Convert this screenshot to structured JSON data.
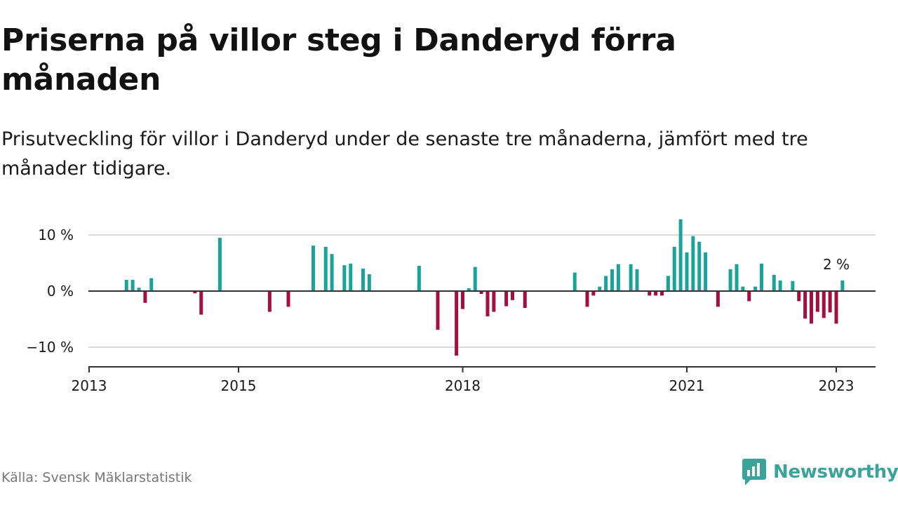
{
  "header": {
    "title": "Priserna på villor steg i Danderyd förra månaden",
    "subtitle": "Prisutveckling för villor i Danderyd under de senaste tre månaderna, jämfört med tre månader tidigare."
  },
  "footer": {
    "source": "Källa: Svensk Mäklarstatistik",
    "brand": "Newsworthy"
  },
  "colors": {
    "positive": "#1aa39a",
    "negative": "#a3103f",
    "grid": "#d9d9d9",
    "zero_line": "#333333",
    "brand": "#3aa39a"
  },
  "chart_data": {
    "type": "bar",
    "title": "Priserna på villor steg i Danderyd förra månaden",
    "subtitle": "Prisutveckling för villor i Danderyd under de senaste tre månaderna, jämfört med tre månader tidigare.",
    "y_ticks": [
      {
        "value": 10,
        "label": "10 %"
      },
      {
        "value": 0,
        "label": "0 %"
      },
      {
        "value": -10,
        "label": "−10 %"
      }
    ],
    "x_ticks": [
      {
        "x": "2013-01",
        "label": "2013"
      },
      {
        "x": "2015-01",
        "label": "2015"
      },
      {
        "x": "2018-01",
        "label": "2018"
      },
      {
        "x": "2021-01",
        "label": "2021"
      },
      {
        "x": "2023-01",
        "label": "2023"
      }
    ],
    "x_range": [
      "2013-01",
      "2023-06"
    ],
    "ylim": [
      -13.5,
      12.5
    ],
    "grid": true,
    "annotation": {
      "x": "2023-01",
      "label": "2 %"
    },
    "points": [
      {
        "x": "2013-07",
        "y": 2.0
      },
      {
        "x": "2013-08",
        "y": 2.0
      },
      {
        "x": "2013-09",
        "y": 0.6
      },
      {
        "x": "2013-10",
        "y": -2.1
      },
      {
        "x": "2013-11",
        "y": 2.3
      },
      {
        "x": "2014-06",
        "y": -0.4
      },
      {
        "x": "2014-07",
        "y": -4.2
      },
      {
        "x": "2014-10",
        "y": 9.5
      },
      {
        "x": "2015-06",
        "y": -3.7
      },
      {
        "x": "2015-09",
        "y": -2.8
      },
      {
        "x": "2016-01",
        "y": 8.1
      },
      {
        "x": "2016-03",
        "y": 7.9
      },
      {
        "x": "2016-04",
        "y": 6.6
      },
      {
        "x": "2016-06",
        "y": 4.6
      },
      {
        "x": "2016-07",
        "y": 4.9
      },
      {
        "x": "2016-09",
        "y": 4.0
      },
      {
        "x": "2016-10",
        "y": 3.0
      },
      {
        "x": "2017-06",
        "y": 4.5
      },
      {
        "x": "2017-09",
        "y": -6.9
      },
      {
        "x": "2017-12",
        "y": -11.5
      },
      {
        "x": "2018-01",
        "y": -3.2
      },
      {
        "x": "2018-02",
        "y": 0.5
      },
      {
        "x": "2018-03",
        "y": 4.3
      },
      {
        "x": "2018-04",
        "y": -0.5
      },
      {
        "x": "2018-05",
        "y": -4.5
      },
      {
        "x": "2018-06",
        "y": -3.7
      },
      {
        "x": "2018-08",
        "y": -2.7
      },
      {
        "x": "2018-09",
        "y": -1.6
      },
      {
        "x": "2018-11",
        "y": -3.0
      },
      {
        "x": "2019-07",
        "y": 3.3
      },
      {
        "x": "2019-09",
        "y": -2.8
      },
      {
        "x": "2019-10",
        "y": -0.8
      },
      {
        "x": "2019-11",
        "y": 0.8
      },
      {
        "x": "2019-12",
        "y": 2.7
      },
      {
        "x": "2020-01",
        "y": 3.9
      },
      {
        "x": "2020-02",
        "y": 4.8
      },
      {
        "x": "2020-04",
        "y": 4.8
      },
      {
        "x": "2020-05",
        "y": 3.9
      },
      {
        "x": "2020-07",
        "y": -0.8
      },
      {
        "x": "2020-08",
        "y": -0.8
      },
      {
        "x": "2020-09",
        "y": -0.8
      },
      {
        "x": "2020-10",
        "y": 2.7
      },
      {
        "x": "2020-11",
        "y": 7.9
      },
      {
        "x": "2020-12",
        "y": 12.8
      },
      {
        "x": "2021-01",
        "y": 6.9
      },
      {
        "x": "2021-02",
        "y": 9.8
      },
      {
        "x": "2021-03",
        "y": 8.8
      },
      {
        "x": "2021-04",
        "y": 6.9
      },
      {
        "x": "2021-06",
        "y": -2.8
      },
      {
        "x": "2021-08",
        "y": 3.9
      },
      {
        "x": "2021-09",
        "y": 4.8
      },
      {
        "x": "2021-10",
        "y": 0.8
      },
      {
        "x": "2021-11",
        "y": -1.8
      },
      {
        "x": "2021-12",
        "y": 0.8
      },
      {
        "x": "2022-01",
        "y": 4.9
      },
      {
        "x": "2022-03",
        "y": 2.9
      },
      {
        "x": "2022-04",
        "y": 1.9
      },
      {
        "x": "2022-06",
        "y": 1.8
      },
      {
        "x": "2022-07",
        "y": -1.8
      },
      {
        "x": "2022-08",
        "y": -4.9
      },
      {
        "x": "2022-09",
        "y": -5.8
      },
      {
        "x": "2022-10",
        "y": -3.7
      },
      {
        "x": "2022-11",
        "y": -4.8
      },
      {
        "x": "2022-12",
        "y": -3.8
      },
      {
        "x": "2023-01",
        "y": -5.8
      },
      {
        "x": "2023-02",
        "y": 1.9
      }
    ]
  }
}
